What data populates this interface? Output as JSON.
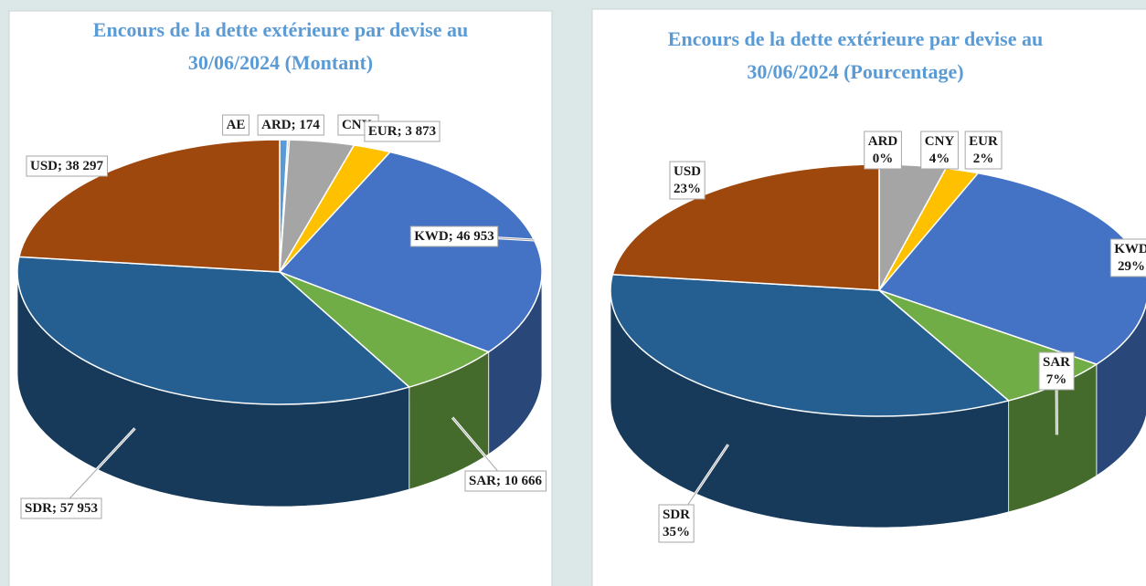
{
  "chart_data": [
    {
      "type": "pie3d",
      "title": [
        "Encours de la dette extérieure par devise au",
        "30/06/2024 (Montant)"
      ],
      "categories": [
        "AED",
        "ARD",
        "CNY",
        "EUR",
        "KWD",
        "SAR",
        "SDR",
        "USD"
      ],
      "labels": [
        "AE",
        "ARD; 174",
        "CNY;",
        "EUR; 3 873",
        "KWD; 46 953",
        "SAR; 10 666",
        "SDR; 57 953",
        "USD; 38 297"
      ],
      "values": [
        800,
        174,
        6600,
        3873,
        46953,
        10666,
        57953,
        38297
      ],
      "colors": [
        "#5b9bd5",
        "#4a7ebb",
        "#a5a5a5",
        "#ffc000",
        "#4472c4",
        "#70ad47",
        "#255e91",
        "#9e480e"
      ]
    },
    {
      "type": "pie3d",
      "title": [
        "Encours de la dette extérieure par devise au",
        "30/06/2024 (Pourcentage)"
      ],
      "categories": [
        "ARD",
        "CNY",
        "EUR",
        "KWD",
        "SAR",
        "SDR",
        "USD"
      ],
      "values": [
        0,
        4,
        2,
        29,
        7,
        35,
        23
      ],
      "value_labels": [
        "0%",
        "4%",
        "2%",
        "29%",
        "7%",
        "35%",
        "23%"
      ],
      "colors": [
        "#5b9bd5",
        "#a5a5a5",
        "#ffc000",
        "#4472c4",
        "#70ad47",
        "#255e91",
        "#9e480e"
      ]
    }
  ]
}
